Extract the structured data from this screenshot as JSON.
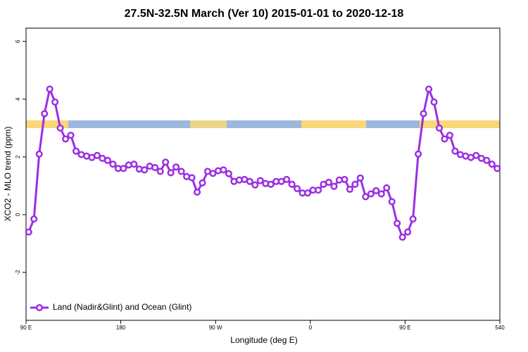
{
  "chart_data": {
    "type": "line",
    "title": "27.5N-32.5N March (Ver 10)   2015-01-01 to 2020-12-18",
    "x_label": "Longitude (deg E)",
    "y_label": "XCO2 - MLO trend (ppm)",
    "x": [
      92.5,
      97.5,
      102.5,
      107.5,
      112.5,
      117.5,
      122.5,
      127.5,
      132.5,
      137.5,
      142.5,
      147.5,
      152.5,
      157.5,
      162.5,
      167.5,
      172.5,
      177.5,
      182.5,
      187.5,
      192.5,
      197.5,
      202.5,
      207.5,
      212.5,
      217.5,
      222.5,
      227.5,
      232.5,
      237.5,
      242.5,
      247.5,
      252.5,
      257.5,
      262.5,
      267.5,
      272.5,
      277.5,
      282.5,
      287.5,
      292.5,
      297.5,
      302.5,
      307.5,
      312.5,
      317.5,
      322.5,
      327.5,
      332.5,
      337.5,
      342.5,
      347.5,
      352.5,
      357.5,
      362.5,
      367.5,
      372.5,
      377.5,
      382.5,
      387.5,
      392.5,
      397.5,
      402.5,
      407.5,
      412.5,
      417.5,
      422.5,
      427.5,
      432.5,
      437.5,
      442.5,
      447.5,
      452.5,
      457.5,
      462.5,
      467.5,
      472.5,
      477.5,
      482.5,
      487.5,
      492.5,
      497.5,
      502.5,
      507.5,
      512.5,
      517.5,
      522.5,
      527.5,
      532.5,
      537.5
    ],
    "series": [
      {
        "name": "Land (Nadir&Glint) and Ocean (Glint)",
        "color": "#9b2fe3",
        "values": [
          -0.6,
          -0.15,
          2.1,
          3.5,
          4.35,
          3.9,
          3.0,
          2.62,
          2.75,
          2.2,
          2.08,
          2.03,
          1.98,
          2.05,
          1.95,
          1.88,
          1.75,
          1.6,
          1.6,
          1.72,
          1.75,
          1.58,
          1.55,
          1.68,
          1.63,
          1.5,
          1.82,
          1.45,
          1.65,
          1.5,
          1.32,
          1.28,
          0.78,
          1.1,
          1.5,
          1.43,
          1.52,
          1.55,
          1.42,
          1.15,
          1.2,
          1.22,
          1.15,
          1.03,
          1.18,
          1.08,
          1.05,
          1.15,
          1.15,
          1.22,
          1.05,
          0.9,
          0.75,
          0.75,
          0.85,
          0.85,
          1.05,
          1.12,
          0.98,
          1.2,
          1.22,
          0.88,
          1.05,
          1.27,
          0.62,
          0.72,
          0.83,
          0.72,
          0.93,
          0.45,
          -0.3,
          -0.78,
          -0.6,
          -0.15,
          2.1,
          3.5,
          4.35,
          3.9,
          3.0,
          2.62,
          2.75,
          2.2,
          2.08,
          2.03,
          1.98,
          2.05,
          1.95,
          1.88,
          1.75,
          1.6
        ]
      }
    ],
    "xlim": [
      90,
      540
    ],
    "xticks": [
      {
        "value": 90,
        "label": "90 E"
      },
      180,
      {
        "value": 270,
        "label": "90 W"
      },
      {
        "value": 360,
        "label": "0"
      },
      {
        "value": 450,
        "label": "90 E"
      },
      540
    ],
    "ylim": [
      -3.66,
      6.46
    ],
    "yticks": [
      -2,
      0,
      2,
      4,
      6
    ],
    "legend": "lower left"
  }
}
